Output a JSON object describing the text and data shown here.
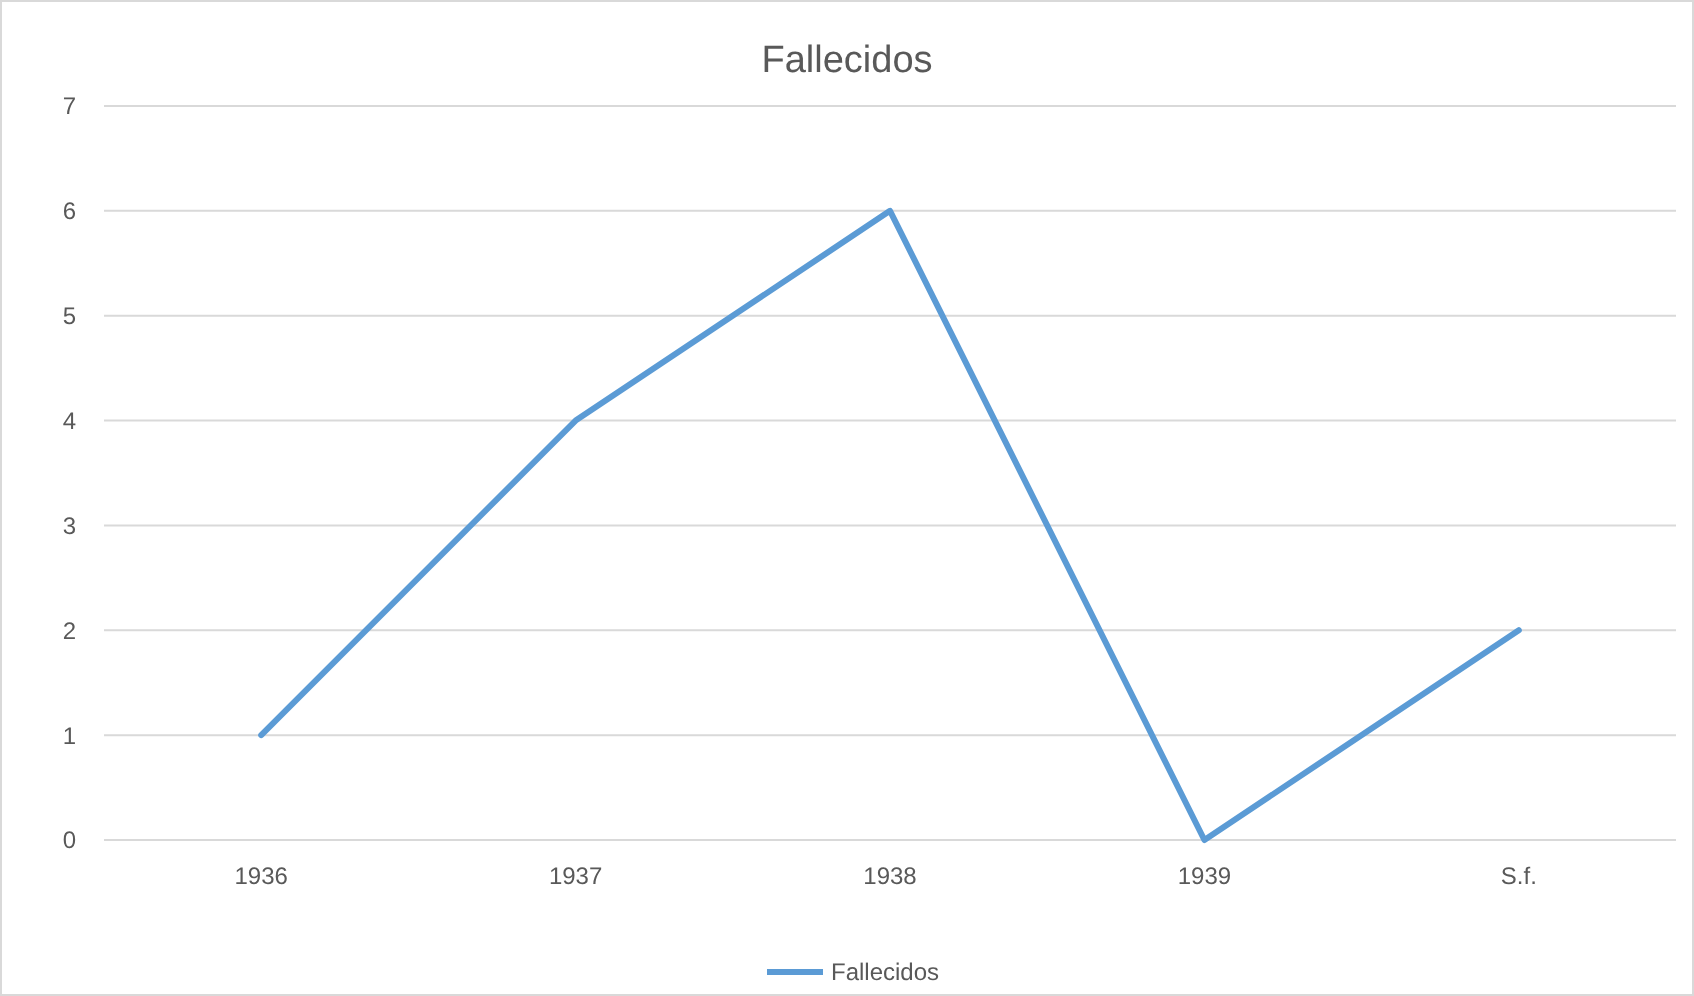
{
  "chart_data": {
    "type": "line",
    "title": "Fallecidos",
    "categories": [
      "1936",
      "1937",
      "1938",
      "1939",
      "S.f."
    ],
    "series": [
      {
        "name": "Fallecidos",
        "color": "#5b9bd5",
        "values": [
          1,
          4,
          6,
          0,
          2
        ]
      }
    ],
    "ylim": [
      0,
      7
    ],
    "yticks": [
      0,
      1,
      2,
      3,
      4,
      5,
      6,
      7
    ],
    "grid": "y",
    "legend": "bottom",
    "marker": "none",
    "line_style": "solid"
  }
}
